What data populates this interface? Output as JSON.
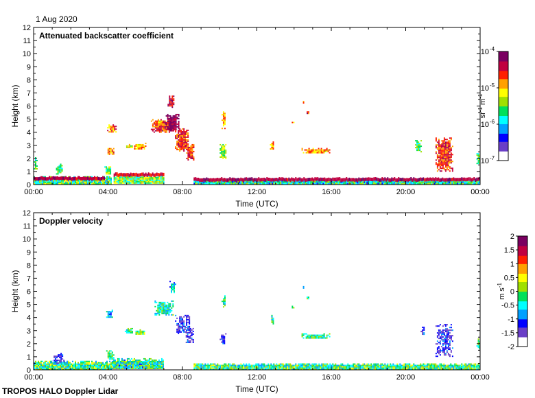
{
  "header": {
    "date": "1 Aug 2020"
  },
  "footer": {
    "instrument": "TROPOS HALO Doppler Lidar"
  },
  "chart_data": [
    {
      "type": "heatmap",
      "title": "Attenuated backscatter coefficient",
      "xlabel": "Time (UTC)",
      "ylabel": "Height (km)",
      "x_ticks": [
        "00:00",
        "04:00",
        "08:00",
        "12:00",
        "16:00",
        "20:00",
        "00:00"
      ],
      "y_ticks": [
        "0",
        "1",
        "2",
        "3",
        "4",
        "5",
        "6",
        "7",
        "8",
        "9",
        "10",
        "11",
        "12"
      ],
      "xlim_hours": [
        0,
        24
      ],
      "ylim_km": [
        0,
        12
      ],
      "colorbar": {
        "scale": "log",
        "range": [
          1e-07,
          0.0001
        ],
        "tick_labels": [
          "10",
          "10",
          "10",
          "10"
        ],
        "tick_exponents": [
          "-7",
          "-6",
          "-5",
          "-4"
        ],
        "unit_parts": [
          "sr",
          "-1",
          " m",
          "-1"
        ],
        "colormap": [
          "#ffffff",
          "#6a3fc7",
          "#0000ff",
          "#00a0ff",
          "#00ffff",
          "#00e05a",
          "#a0e000",
          "#ffff00",
          "#ffa000",
          "#ff2000",
          "#c00040",
          "#7a0060"
        ]
      },
      "features": [
        {
          "kind": "boundary-layer",
          "t0": 0.0,
          "t1": 4.2,
          "h0": 0.0,
          "h1": 0.75,
          "level": 0.45
        },
        {
          "kind": "cloud-base-line",
          "t0": 0.0,
          "t1": 3.8,
          "h": 0.5,
          "level": 0.95
        },
        {
          "kind": "boundary-layer",
          "t0": 4.3,
          "t1": 7.0,
          "h0": 0.1,
          "h1": 0.9,
          "level": 0.5
        },
        {
          "kind": "cloud-base-line",
          "t0": 4.3,
          "t1": 7.0,
          "h": 0.78,
          "level": 0.9
        },
        {
          "kind": "boundary-layer",
          "t0": 8.6,
          "t1": 24.0,
          "h0": 0.0,
          "h1": 0.55,
          "level": 0.4
        },
        {
          "kind": "cloud-base-line",
          "t0": 8.6,
          "t1": 24.0,
          "h": 0.42,
          "level": 0.95
        },
        {
          "kind": "cloud",
          "t0": 0.0,
          "t1": 0.15,
          "h0": 1.2,
          "h1": 2.2,
          "level": 0.45
        },
        {
          "kind": "cloud",
          "t0": 1.2,
          "t1": 1.5,
          "h0": 0.8,
          "h1": 1.6,
          "level": 0.45
        },
        {
          "kind": "cloud",
          "t0": 3.8,
          "t1": 4.15,
          "h0": 0.8,
          "h1": 1.5,
          "level": 0.5
        },
        {
          "kind": "cloud",
          "t0": 3.9,
          "t1": 4.3,
          "h0": 2.3,
          "h1": 2.9,
          "level": 0.75
        },
        {
          "kind": "cloud",
          "t0": 3.95,
          "t1": 4.4,
          "h0": 4.0,
          "h1": 4.6,
          "level": 0.75
        },
        {
          "kind": "cloud",
          "t0": 4.9,
          "t1": 5.3,
          "h0": 2.8,
          "h1": 3.1,
          "level": 0.6
        },
        {
          "kind": "cloud",
          "t0": 5.4,
          "t1": 6.0,
          "h0": 2.7,
          "h1": 3.2,
          "level": 0.7
        },
        {
          "kind": "cloud",
          "t0": 6.3,
          "t1": 7.6,
          "h0": 4.0,
          "h1": 5.0,
          "level": 0.8
        },
        {
          "kind": "cloud",
          "t0": 7.1,
          "t1": 7.8,
          "h0": 4.1,
          "h1": 5.4,
          "level": 0.95
        },
        {
          "kind": "cloud",
          "t0": 7.2,
          "t1": 7.5,
          "h0": 5.9,
          "h1": 6.8,
          "level": 0.85
        },
        {
          "kind": "cloud",
          "t0": 7.6,
          "t1": 8.3,
          "h0": 2.6,
          "h1": 4.3,
          "level": 0.8
        },
        {
          "kind": "cloud",
          "t0": 8.2,
          "t1": 8.6,
          "h0": 1.9,
          "h1": 3.2,
          "level": 0.8
        },
        {
          "kind": "cloud",
          "t0": 6.6,
          "t1": 6.9,
          "h0": 4.6,
          "h1": 5.0,
          "level": 0.7
        },
        {
          "kind": "cloud",
          "t0": 10.0,
          "t1": 10.3,
          "h0": 2.0,
          "h1": 3.2,
          "level": 0.55
        },
        {
          "kind": "cloud",
          "t0": 10.1,
          "t1": 10.3,
          "h0": 4.3,
          "h1": 5.7,
          "level": 0.7
        },
        {
          "kind": "cloud",
          "t0": 12.7,
          "t1": 12.9,
          "h0": 2.7,
          "h1": 3.3,
          "level": 0.7
        },
        {
          "kind": "cloud",
          "t0": 13.8,
          "t1": 14.0,
          "h0": 4.7,
          "h1": 4.9,
          "level": 0.7
        },
        {
          "kind": "cloud",
          "t0": 14.4,
          "t1": 14.5,
          "h0": 6.2,
          "h1": 6.5,
          "level": 0.85
        },
        {
          "kind": "cloud",
          "t0": 14.6,
          "t1": 14.8,
          "h0": 5.4,
          "h1": 5.7,
          "level": 0.85
        },
        {
          "kind": "cloud",
          "t0": 14.4,
          "t1": 15.9,
          "h0": 2.4,
          "h1": 2.8,
          "level": 0.7
        },
        {
          "kind": "cloud",
          "t0": 20.5,
          "t1": 20.8,
          "h0": 2.5,
          "h1": 3.4,
          "level": 0.45
        },
        {
          "kind": "cloud",
          "t0": 21.6,
          "t1": 22.5,
          "h0": 1.0,
          "h1": 3.6,
          "level": 0.8
        },
        {
          "kind": "cloud",
          "t0": 23.8,
          "t1": 24.0,
          "h0": 1.6,
          "h1": 2.4,
          "level": 0.5
        }
      ]
    },
    {
      "type": "heatmap",
      "title": "Doppler velocity",
      "xlabel": "Time (UTC)",
      "ylabel": "Height (km)",
      "x_ticks": [
        "00:00",
        "04:00",
        "08:00",
        "12:00",
        "16:00",
        "20:00",
        "00:00"
      ],
      "y_ticks": [
        "0",
        "1",
        "2",
        "3",
        "4",
        "5",
        "6",
        "7",
        "8",
        "9",
        "10",
        "11",
        "12"
      ],
      "xlim_hours": [
        0,
        24
      ],
      "ylim_km": [
        0,
        12
      ],
      "colorbar": {
        "scale": "linear",
        "range": [
          -2,
          2
        ],
        "tick_labels": [
          "-2",
          "-1.5",
          "-1",
          "-0.5",
          "0",
          "0.5",
          "1",
          "1.5",
          "2"
        ],
        "unit": "m s",
        "unit_exponent": "-1",
        "colormap": [
          "#ffffff",
          "#6a3fc7",
          "#0000ff",
          "#00a0ff",
          "#00ffff",
          "#00e05a",
          "#a0e000",
          "#ffff00",
          "#ffa000",
          "#ff2000",
          "#c00040",
          "#7a0060"
        ]
      },
      "features": [
        {
          "kind": "boundary-layer",
          "t0": 0.0,
          "t1": 4.2,
          "h0": 0.0,
          "h1": 0.8,
          "level": 0.45
        },
        {
          "kind": "boundary-layer",
          "t0": 4.2,
          "t1": 7.0,
          "h0": 0.1,
          "h1": 1.0,
          "level": 0.42
        },
        {
          "kind": "boundary-layer",
          "t0": 8.6,
          "t1": 24.0,
          "h0": 0.0,
          "h1": 0.6,
          "level": 0.45
        },
        {
          "kind": "cloud",
          "t0": 1.0,
          "t1": 1.6,
          "h0": 0.5,
          "h1": 1.3,
          "level": 0.15
        },
        {
          "kind": "cloud",
          "t0": 3.9,
          "t1": 4.3,
          "h0": 0.8,
          "h1": 1.5,
          "level": 0.45
        },
        {
          "kind": "cloud",
          "t0": 3.9,
          "t1": 4.2,
          "h0": 4.0,
          "h1": 4.6,
          "level": 0.35
        },
        {
          "kind": "cloud",
          "t0": 4.9,
          "t1": 5.3,
          "h0": 2.8,
          "h1": 3.2,
          "level": 0.45
        },
        {
          "kind": "cloud",
          "t0": 5.4,
          "t1": 6.0,
          "h0": 2.7,
          "h1": 3.1,
          "level": 0.5
        },
        {
          "kind": "cloud",
          "t0": 6.5,
          "t1": 7.5,
          "h0": 4.2,
          "h1": 5.3,
          "level": 0.4
        },
        {
          "kind": "cloud",
          "t0": 7.3,
          "t1": 7.6,
          "h0": 5.9,
          "h1": 6.8,
          "level": 0.35
        },
        {
          "kind": "cloud",
          "t0": 7.6,
          "t1": 8.4,
          "h0": 2.8,
          "h1": 4.2,
          "level": 0.15
        },
        {
          "kind": "cloud",
          "t0": 8.1,
          "t1": 8.6,
          "h0": 2.0,
          "h1": 3.2,
          "level": 0.15
        },
        {
          "kind": "cloud",
          "t0": 10.0,
          "t1": 10.3,
          "h0": 2.0,
          "h1": 2.8,
          "level": 0.15
        },
        {
          "kind": "cloud",
          "t0": 10.1,
          "t1": 10.3,
          "h0": 4.8,
          "h1": 5.7,
          "level": 0.4
        },
        {
          "kind": "cloud",
          "t0": 12.7,
          "t1": 12.9,
          "h0": 3.5,
          "h1": 4.2,
          "level": 0.45
        },
        {
          "kind": "cloud",
          "t0": 13.8,
          "t1": 14.0,
          "h0": 4.7,
          "h1": 4.9,
          "level": 0.4
        },
        {
          "kind": "cloud",
          "t0": 14.4,
          "t1": 14.5,
          "h0": 6.2,
          "h1": 6.4,
          "level": 0.35
        },
        {
          "kind": "cloud",
          "t0": 14.6,
          "t1": 14.8,
          "h0": 5.4,
          "h1": 5.7,
          "level": 0.45
        },
        {
          "kind": "cloud",
          "t0": 14.4,
          "t1": 15.9,
          "h0": 2.4,
          "h1": 2.8,
          "level": 0.45
        },
        {
          "kind": "cloud",
          "t0": 20.8,
          "t1": 21.0,
          "h0": 2.6,
          "h1": 3.4,
          "level": 0.15
        },
        {
          "kind": "cloud",
          "t0": 21.6,
          "t1": 22.5,
          "h0": 1.0,
          "h1": 3.5,
          "level": 0.15
        },
        {
          "kind": "cloud",
          "t0": 23.8,
          "t1": 24.0,
          "h0": 1.6,
          "h1": 2.4,
          "level": 0.45
        }
      ]
    }
  ]
}
